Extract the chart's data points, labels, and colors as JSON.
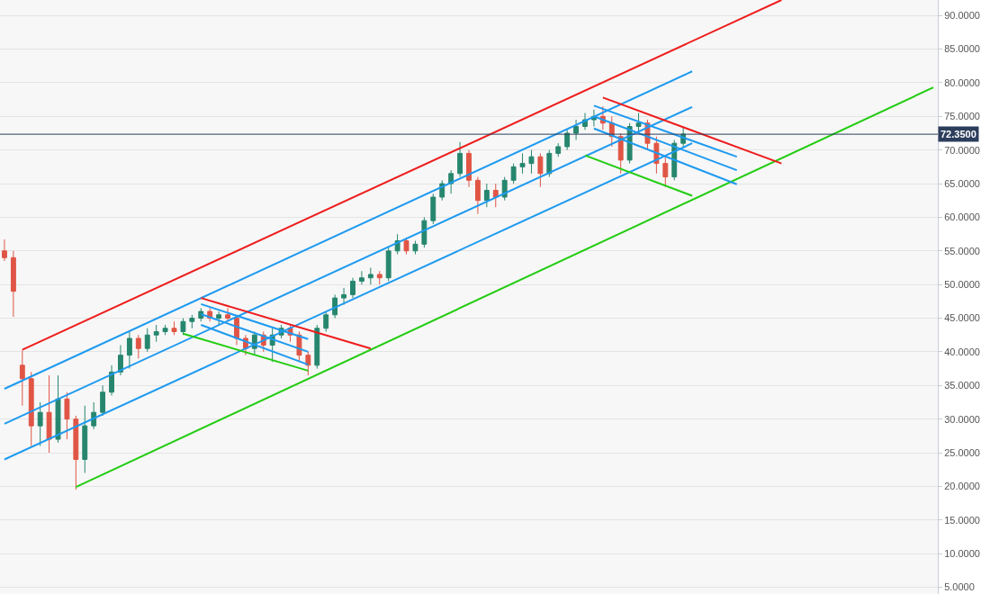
{
  "chart_data": {
    "type": "candlestick",
    "categories": [
      null,
      null,
      null,
      null,
      null,
      null,
      null,
      null,
      null,
      null,
      null,
      null,
      null,
      null,
      null,
      null,
      null,
      null,
      null,
      null,
      null,
      null,
      null,
      null,
      null,
      null,
      null,
      null,
      null,
      null,
      null,
      null,
      null,
      null,
      null,
      null,
      null,
      null,
      null,
      null,
      null,
      null,
      null,
      null,
      null,
      null,
      null,
      null,
      null,
      null,
      null,
      null,
      null,
      null,
      null,
      null,
      null,
      null,
      null,
      null,
      null,
      null,
      null,
      null,
      null,
      null,
      null,
      null,
      null,
      null,
      null,
      null,
      null,
      null,
      null,
      null,
      null,
      null,
      null,
      null,
      null,
      null,
      null,
      null,
      null,
      null,
      null,
      null,
      null,
      null,
      null,
      null,
      null,
      null,
      null,
      null,
      null,
      null,
      null,
      null,
      null,
      null,
      null,
      null,
      null
    ],
    "ohlc": [
      [
        55.0,
        56.7,
        53.5,
        54.0
      ],
      [
        54.0,
        55.0,
        45.2,
        49.0
      ],
      [
        38.0,
        40.2,
        32.0,
        36.0
      ],
      [
        36.0,
        37.0,
        26.0,
        29.0
      ],
      [
        29.0,
        32.5,
        26.0,
        31.0
      ],
      [
        31.0,
        36.5,
        25.0,
        27.0
      ],
      [
        27.0,
        36.5,
        26.5,
        33.0
      ],
      [
        33.0,
        34.0,
        27.0,
        30.0
      ],
      [
        30.0,
        30.5,
        19.5,
        24.0
      ],
      [
        24.0,
        32.0,
        22.0,
        29.0
      ],
      [
        29.0,
        32.5,
        28.5,
        31.0
      ],
      [
        31.0,
        35.0,
        30.5,
        34.0
      ],
      [
        34.0,
        38.0,
        33.5,
        37.0
      ],
      [
        37.0,
        41.0,
        36.5,
        39.5
      ],
      [
        39.5,
        43.0,
        37.5,
        42.0
      ],
      [
        42.0,
        42.5,
        39.0,
        40.5
      ],
      [
        40.5,
        43.5,
        40.0,
        42.5
      ],
      [
        42.5,
        44.0,
        41.5,
        43.0
      ],
      [
        43.0,
        44.0,
        42.5,
        43.5
      ],
      [
        43.5,
        44.5,
        42.5,
        43.0
      ],
      [
        43.0,
        45.0,
        42.5,
        44.5
      ],
      [
        44.5,
        45.5,
        43.5,
        45.0
      ],
      [
        45.0,
        46.5,
        44.5,
        46.0
      ],
      [
        46.0,
        46.5,
        44.5,
        45.0
      ],
      [
        45.0,
        46.0,
        44.0,
        45.5
      ],
      [
        45.5,
        46.5,
        44.5,
        45.0
      ],
      [
        45.0,
        45.5,
        41.0,
        42.0
      ],
      [
        42.0,
        42.5,
        39.5,
        40.5
      ],
      [
        40.5,
        43.0,
        39.5,
        42.5
      ],
      [
        42.5,
        43.0,
        40.0,
        41.0
      ],
      [
        41.0,
        43.5,
        38.5,
        42.5
      ],
      [
        42.5,
        44.0,
        42.0,
        43.5
      ],
      [
        43.5,
        44.0,
        41.5,
        42.5
      ],
      [
        42.5,
        43.0,
        38.5,
        39.5
      ],
      [
        39.5,
        40.0,
        36.5,
        38.0
      ],
      [
        38.0,
        44.0,
        37.5,
        43.5
      ],
      [
        43.5,
        46.0,
        43.0,
        45.5
      ],
      [
        45.5,
        48.5,
        45.0,
        48.0
      ],
      [
        48.0,
        49.5,
        47.0,
        48.5
      ],
      [
        48.5,
        51.0,
        48.0,
        50.5
      ],
      [
        50.5,
        52.0,
        50.0,
        51.0
      ],
      [
        51.0,
        52.5,
        50.0,
        51.5
      ],
      [
        51.5,
        52.0,
        50.0,
        51.0
      ],
      [
        51.0,
        55.5,
        50.5,
        55.0
      ],
      [
        55.0,
        57.5,
        54.5,
        56.5
      ],
      [
        56.5,
        57.0,
        54.5,
        55.0
      ],
      [
        55.0,
        56.5,
        54.5,
        56.0
      ],
      [
        56.0,
        60.0,
        55.5,
        59.5
      ],
      [
        59.5,
        63.5,
        59.0,
        63.0
      ],
      [
        63.0,
        65.5,
        62.5,
        65.0
      ],
      [
        65.0,
        67.0,
        63.5,
        66.5
      ],
      [
        66.5,
        71.2,
        66.0,
        69.5
      ],
      [
        69.5,
        70.0,
        64.5,
        65.5
      ],
      [
        65.5,
        66.0,
        60.5,
        62.5
      ],
      [
        62.5,
        65.0,
        61.5,
        64.0
      ],
      [
        64.0,
        65.0,
        61.5,
        63.0
      ],
      [
        63.0,
        66.0,
        62.5,
        65.5
      ],
      [
        65.5,
        68.0,
        65.0,
        67.5
      ],
      [
        67.5,
        69.5,
        66.5,
        68.0
      ],
      [
        68.0,
        70.0,
        66.5,
        69.0
      ],
      [
        69.0,
        69.5,
        64.5,
        66.5
      ],
      [
        66.5,
        70.0,
        66.0,
        69.5
      ],
      [
        69.5,
        71.0,
        69.0,
        70.5
      ],
      [
        70.5,
        73.0,
        70.0,
        72.5
      ],
      [
        72.5,
        74.5,
        71.5,
        73.5
      ],
      [
        73.5,
        75.5,
        73.0,
        74.5
      ],
      [
        74.5,
        76.0,
        73.5,
        75.0
      ],
      [
        75.0,
        76.5,
        73.0,
        74.0
      ],
      [
        74.0,
        75.0,
        70.5,
        72.0
      ],
      [
        72.0,
        72.5,
        66.5,
        68.5
      ],
      [
        68.5,
        74.0,
        68.0,
        73.5
      ],
      [
        73.5,
        75.5,
        72.5,
        74.0
      ],
      [
        74.0,
        74.5,
        70.0,
        71.0
      ],
      [
        71.0,
        72.0,
        66.5,
        68.0
      ],
      [
        68.0,
        69.0,
        64.5,
        66.0
      ],
      [
        66.0,
        71.5,
        65.5,
        71.0
      ],
      [
        71.0,
        73.5,
        70.5,
        72.35
      ],
      null,
      null,
      null,
      null,
      null,
      null,
      null,
      null,
      null,
      null,
      null,
      null,
      null,
      null,
      null,
      null,
      null,
      null,
      null,
      null,
      null,
      null,
      null,
      null,
      null,
      null,
      null,
      null
    ],
    "series": [
      {
        "type": "line",
        "color": "#ee1c1c",
        "values": [
          null,
          null,
          40.3,
          null,
          null,
          null,
          null,
          null,
          null,
          null,
          null,
          null,
          null,
          null,
          null,
          null,
          null,
          null,
          null,
          null,
          null,
          null,
          null,
          null,
          null,
          null,
          null,
          null,
          null,
          null,
          null,
          null,
          null,
          null,
          null,
          null,
          null,
          null,
          null,
          null,
          null,
          null,
          null,
          null,
          null,
          null,
          null,
          null,
          null,
          null,
          null,
          null,
          null,
          null,
          null,
          null,
          null,
          null,
          null,
          null,
          null,
          null,
          null,
          null,
          null,
          null,
          null,
          null,
          null,
          null,
          null,
          null,
          null,
          null,
          null,
          null,
          null,
          null,
          null,
          null,
          null,
          null,
          null,
          null,
          null,
          null,
          null,
          92.3,
          null,
          null,
          null,
          null,
          null,
          null,
          null,
          null,
          null,
          null,
          null,
          null,
          null,
          null,
          null,
          null,
          null
        ]
      },
      {
        "type": "line",
        "color": "#1e9af0",
        "values": [
          34.5,
          null,
          null,
          null,
          null,
          null,
          null,
          null,
          null,
          null,
          null,
          null,
          null,
          null,
          null,
          null,
          null,
          null,
          null,
          null,
          null,
          null,
          null,
          null,
          null,
          null,
          null,
          null,
          null,
          null,
          null,
          null,
          null,
          null,
          null,
          null,
          null,
          null,
          null,
          null,
          null,
          null,
          null,
          null,
          null,
          null,
          null,
          null,
          null,
          null,
          null,
          null,
          null,
          null,
          null,
          null,
          null,
          null,
          null,
          null,
          null,
          null,
          null,
          null,
          null,
          null,
          null,
          null,
          null,
          null,
          null,
          null,
          null,
          null,
          null,
          null,
          null,
          81.7,
          null,
          null,
          null,
          null,
          null,
          null,
          null,
          null,
          null,
          null,
          null,
          null,
          null,
          null,
          null,
          null,
          null,
          null,
          null,
          null,
          null,
          null,
          null,
          null,
          null,
          null,
          null
        ]
      },
      {
        "type": "line",
        "color": "#1e9af0",
        "values": [
          29.3,
          null,
          null,
          null,
          null,
          null,
          null,
          null,
          null,
          null,
          null,
          null,
          null,
          null,
          null,
          null,
          null,
          null,
          null,
          null,
          null,
          null,
          null,
          null,
          null,
          null,
          null,
          null,
          null,
          null,
          null,
          null,
          null,
          null,
          null,
          null,
          null,
          null,
          null,
          null,
          null,
          null,
          null,
          null,
          null,
          null,
          null,
          null,
          null,
          null,
          null,
          null,
          null,
          null,
          null,
          null,
          null,
          null,
          null,
          null,
          null,
          null,
          null,
          null,
          null,
          null,
          null,
          null,
          null,
          null,
          null,
          null,
          null,
          null,
          null,
          null,
          null,
          76.4,
          null,
          null,
          null,
          null,
          null,
          null,
          null,
          null,
          null,
          null,
          null,
          null,
          null,
          null,
          null,
          null,
          null,
          null,
          null,
          null,
          null,
          null,
          null,
          null,
          null,
          null,
          null
        ]
      },
      {
        "type": "line",
        "color": "#1e9af0",
        "values": [
          24.0,
          null,
          null,
          null,
          null,
          null,
          null,
          null,
          null,
          null,
          null,
          null,
          null,
          null,
          null,
          null,
          null,
          null,
          null,
          null,
          null,
          null,
          null,
          null,
          null,
          null,
          null,
          null,
          null,
          null,
          null,
          null,
          null,
          null,
          null,
          null,
          null,
          null,
          null,
          null,
          null,
          null,
          null,
          null,
          null,
          null,
          null,
          null,
          null,
          null,
          null,
          null,
          null,
          null,
          null,
          null,
          null,
          null,
          null,
          null,
          null,
          null,
          null,
          null,
          null,
          null,
          null,
          null,
          null,
          null,
          null,
          null,
          null,
          null,
          null,
          null,
          null,
          71.0,
          null,
          null,
          null,
          null,
          null,
          null,
          null,
          null,
          null,
          null,
          null,
          null,
          null,
          null,
          null,
          null,
          null,
          null,
          null,
          null,
          null,
          null,
          null,
          null,
          null,
          null,
          null
        ]
      },
      {
        "type": "line",
        "color": "#22cc11",
        "values": [
          null,
          null,
          null,
          null,
          null,
          null,
          null,
          null,
          19.9,
          null,
          null,
          null,
          null,
          null,
          null,
          null,
          null,
          null,
          null,
          null,
          null,
          null,
          null,
          null,
          null,
          null,
          null,
          null,
          null,
          null,
          null,
          null,
          null,
          null,
          null,
          null,
          null,
          null,
          null,
          null,
          null,
          null,
          null,
          null,
          null,
          null,
          null,
          null,
          null,
          null,
          null,
          null,
          null,
          null,
          null,
          null,
          null,
          null,
          null,
          null,
          null,
          null,
          null,
          null,
          null,
          null,
          null,
          null,
          null,
          null,
          null,
          null,
          null,
          null,
          null,
          null,
          null,
          null,
          null,
          null,
          null,
          null,
          null,
          null,
          null,
          null,
          null,
          null,
          null,
          null,
          null,
          null,
          null,
          null,
          null,
          null,
          null,
          null,
          null,
          null,
          null,
          null,
          null,
          null,
          79.3
        ]
      },
      {
        "type": "line",
        "color": "#ee1c1c",
        "values": [
          null,
          null,
          null,
          null,
          null,
          null,
          null,
          null,
          null,
          null,
          null,
          null,
          null,
          null,
          null,
          null,
          null,
          null,
          null,
          null,
          null,
          null,
          48.0,
          null,
          null,
          null,
          null,
          null,
          null,
          null,
          null,
          null,
          null,
          null,
          null,
          null,
          null,
          null,
          null,
          null,
          null,
          40.5,
          null,
          null,
          null,
          null,
          null,
          null,
          null,
          null,
          null,
          null,
          null,
          null,
          null,
          null,
          null,
          null,
          null,
          null,
          null,
          null,
          null,
          null,
          null,
          null,
          null,
          null,
          null,
          null,
          null,
          null,
          null,
          null,
          null,
          null,
          null,
          null,
          null,
          null,
          null,
          null,
          null,
          null,
          null,
          null,
          null,
          null,
          null,
          null,
          null,
          null,
          null,
          null,
          null,
          null,
          null,
          null,
          null,
          null,
          null,
          null,
          null,
          null,
          null
        ]
      },
      {
        "type": "line",
        "color": "#22cc11",
        "values": [
          null,
          null,
          null,
          null,
          null,
          null,
          null,
          null,
          null,
          null,
          null,
          null,
          null,
          null,
          null,
          null,
          null,
          null,
          null,
          null,
          42.7,
          null,
          null,
          null,
          null,
          null,
          null,
          null,
          null,
          null,
          null,
          null,
          null,
          null,
          37.2,
          null,
          null,
          null,
          null,
          null,
          null,
          null,
          null,
          null,
          null,
          null,
          null,
          null,
          null,
          null,
          null,
          null,
          null,
          null,
          null,
          null,
          null,
          null,
          null,
          null,
          null,
          null,
          null,
          null,
          null,
          null,
          null,
          null,
          null,
          null,
          null,
          null,
          null,
          null,
          null,
          null,
          null,
          null,
          null,
          null,
          null,
          null,
          null,
          null,
          null,
          null,
          null,
          null,
          null,
          null,
          null,
          null,
          null,
          null,
          null,
          null,
          null,
          null,
          null,
          null,
          null,
          null,
          null,
          null,
          null
        ]
      },
      {
        "type": "line",
        "color": "#1e9af0",
        "values": [
          null,
          null,
          null,
          null,
          null,
          null,
          null,
          null,
          null,
          null,
          null,
          null,
          null,
          null,
          null,
          null,
          null,
          null,
          null,
          null,
          null,
          null,
          47.1,
          null,
          null,
          null,
          null,
          null,
          null,
          null,
          null,
          null,
          null,
          null,
          41.9,
          null,
          null,
          null,
          null,
          null,
          null,
          null,
          null,
          null,
          null,
          null,
          null,
          null,
          null,
          null,
          null,
          null,
          null,
          null,
          null,
          null,
          null,
          null,
          null,
          null,
          null,
          null,
          null,
          null,
          null,
          null,
          null,
          null,
          null,
          null,
          null,
          null,
          null,
          null,
          null,
          null,
          null,
          null,
          null,
          null,
          null,
          null,
          null,
          null,
          null,
          null,
          null,
          null,
          null,
          null,
          null,
          null,
          null,
          null,
          null,
          null,
          null,
          null,
          null,
          null,
          null,
          null,
          null,
          null,
          null
        ]
      },
      {
        "type": "line",
        "color": "#1e9af0",
        "values": [
          null,
          null,
          null,
          null,
          null,
          null,
          null,
          null,
          null,
          null,
          null,
          null,
          null,
          null,
          null,
          null,
          null,
          null,
          null,
          null,
          null,
          null,
          45.6,
          null,
          null,
          null,
          null,
          null,
          null,
          null,
          null,
          null,
          null,
          null,
          40.0,
          null,
          null,
          null,
          null,
          null,
          null,
          null,
          null,
          null,
          null,
          null,
          null,
          null,
          null,
          null,
          null,
          null,
          null,
          null,
          null,
          null,
          null,
          null,
          null,
          null,
          null,
          null,
          null,
          null,
          null,
          null,
          null,
          null,
          null,
          null,
          null,
          null,
          null,
          null,
          null,
          null,
          null,
          null,
          null,
          null,
          null,
          null,
          null,
          null,
          null,
          null,
          null,
          null,
          null,
          null,
          null,
          null,
          null,
          null,
          null,
          null,
          null,
          null,
          null,
          null,
          null,
          null,
          null,
          null,
          null
        ]
      },
      {
        "type": "line",
        "color": "#1e9af0",
        "values": [
          null,
          null,
          null,
          null,
          null,
          null,
          null,
          null,
          null,
          null,
          null,
          null,
          null,
          null,
          null,
          null,
          null,
          null,
          null,
          null,
          null,
          null,
          44.0,
          null,
          null,
          null,
          null,
          null,
          null,
          null,
          null,
          null,
          null,
          null,
          38.1,
          null,
          null,
          null,
          null,
          null,
          null,
          null,
          null,
          null,
          null,
          null,
          null,
          null,
          null,
          null,
          null,
          null,
          null,
          null,
          null,
          null,
          null,
          null,
          null,
          null,
          null,
          null,
          null,
          null,
          null,
          null,
          null,
          null,
          null,
          null,
          null,
          null,
          null,
          null,
          null,
          null,
          null,
          null,
          null,
          null,
          null,
          null,
          null,
          null,
          null,
          null,
          null,
          null,
          null,
          null,
          null,
          null,
          null,
          null,
          null,
          null,
          null,
          null,
          null,
          null,
          null,
          null,
          null,
          null,
          null
        ]
      },
      {
        "type": "line",
        "color": "#ee1c1c",
        "values": [
          null,
          null,
          null,
          null,
          null,
          null,
          null,
          null,
          null,
          null,
          null,
          null,
          null,
          null,
          null,
          null,
          null,
          null,
          null,
          null,
          null,
          null,
          null,
          null,
          null,
          null,
          null,
          null,
          null,
          null,
          null,
          null,
          null,
          null,
          null,
          null,
          null,
          null,
          null,
          null,
          null,
          null,
          null,
          null,
          null,
          null,
          null,
          null,
          null,
          null,
          null,
          null,
          null,
          null,
          null,
          null,
          null,
          null,
          null,
          null,
          null,
          null,
          null,
          null,
          null,
          null,
          null,
          77.8,
          null,
          null,
          null,
          null,
          null,
          null,
          null,
          null,
          null,
          null,
          null,
          null,
          null,
          null,
          null,
          null,
          null,
          null,
          null,
          68.0,
          null,
          null,
          null,
          null,
          null,
          null,
          null,
          null,
          null,
          null,
          null,
          null,
          null,
          null,
          null,
          null,
          null
        ]
      },
      {
        "type": "line",
        "color": "#22cc11",
        "values": [
          null,
          null,
          null,
          null,
          null,
          null,
          null,
          null,
          null,
          null,
          null,
          null,
          null,
          null,
          null,
          null,
          null,
          null,
          null,
          null,
          null,
          null,
          null,
          null,
          null,
          null,
          null,
          null,
          null,
          null,
          null,
          null,
          null,
          null,
          null,
          null,
          null,
          null,
          null,
          null,
          null,
          null,
          null,
          null,
          null,
          null,
          null,
          null,
          null,
          null,
          null,
          null,
          null,
          null,
          null,
          null,
          null,
          null,
          null,
          null,
          null,
          null,
          null,
          null,
          null,
          69.2,
          null,
          null,
          null,
          null,
          null,
          null,
          null,
          null,
          null,
          null,
          null,
          63.2,
          null,
          null,
          null,
          null,
          null,
          null,
          null,
          null,
          null,
          null,
          null,
          null,
          null,
          null,
          null,
          null,
          null,
          null,
          null,
          null,
          null,
          null,
          null,
          null,
          null,
          null,
          null
        ]
      },
      {
        "type": "line",
        "color": "#1e9af0",
        "values": [
          null,
          null,
          null,
          null,
          null,
          null,
          null,
          null,
          null,
          null,
          null,
          null,
          null,
          null,
          null,
          null,
          null,
          null,
          null,
          null,
          null,
          null,
          null,
          null,
          null,
          null,
          null,
          null,
          null,
          null,
          null,
          null,
          null,
          null,
          null,
          null,
          null,
          null,
          null,
          null,
          null,
          null,
          null,
          null,
          null,
          null,
          null,
          null,
          null,
          null,
          null,
          null,
          null,
          null,
          null,
          null,
          null,
          null,
          null,
          null,
          null,
          null,
          null,
          null,
          null,
          null,
          76.6,
          null,
          null,
          null,
          null,
          null,
          null,
          null,
          null,
          null,
          null,
          null,
          null,
          null,
          null,
          null,
          69.0,
          null,
          null,
          null,
          null,
          null,
          null,
          null,
          null,
          null,
          null,
          null,
          null,
          null,
          null,
          null,
          null,
          null,
          null,
          null,
          null,
          null,
          null
        ]
      },
      {
        "type": "line",
        "color": "#1e9af0",
        "values": [
          null,
          null,
          null,
          null,
          null,
          null,
          null,
          null,
          null,
          null,
          null,
          null,
          null,
          null,
          null,
          null,
          null,
          null,
          null,
          null,
          null,
          null,
          null,
          null,
          null,
          null,
          null,
          null,
          null,
          null,
          null,
          null,
          null,
          null,
          null,
          null,
          null,
          null,
          null,
          null,
          null,
          null,
          null,
          null,
          null,
          null,
          null,
          null,
          null,
          null,
          null,
          null,
          null,
          null,
          null,
          null,
          null,
          null,
          null,
          null,
          null,
          null,
          null,
          null,
          null,
          null,
          75.0,
          null,
          null,
          null,
          null,
          null,
          null,
          null,
          null,
          null,
          null,
          null,
          null,
          null,
          null,
          null,
          67.0,
          null,
          null,
          null,
          null,
          null,
          null,
          null,
          null,
          null,
          null,
          null,
          null,
          null,
          null,
          null,
          null,
          null,
          null,
          null,
          null,
          null,
          null
        ]
      },
      {
        "type": "line",
        "color": "#1e9af0",
        "values": [
          null,
          null,
          null,
          null,
          null,
          null,
          null,
          null,
          null,
          null,
          null,
          null,
          null,
          null,
          null,
          null,
          null,
          null,
          null,
          null,
          null,
          null,
          null,
          null,
          null,
          null,
          null,
          null,
          null,
          null,
          null,
          null,
          null,
          null,
          null,
          null,
          null,
          null,
          null,
          null,
          null,
          null,
          null,
          null,
          null,
          null,
          null,
          null,
          null,
          null,
          null,
          null,
          null,
          null,
          null,
          null,
          null,
          null,
          null,
          null,
          null,
          null,
          null,
          null,
          null,
          null,
          73.2,
          null,
          null,
          null,
          null,
          null,
          null,
          null,
          null,
          null,
          null,
          null,
          null,
          null,
          null,
          null,
          64.9,
          null,
          null,
          null,
          null,
          null,
          null,
          null,
          null,
          null,
          null,
          null,
          null,
          null,
          null,
          null,
          null,
          null,
          null,
          null,
          null,
          null,
          null
        ]
      }
    ],
    "ref_lines": [
      {
        "axis": "y",
        "value": 72.35,
        "label": "72.3500",
        "color": "#2c3e5c"
      }
    ],
    "ylim": [
      4.0,
      92.3
    ],
    "yticks": [
      {
        "value": 5,
        "label": "5.0000"
      },
      {
        "value": 10,
        "label": "10.0000"
      },
      {
        "value": 15,
        "label": "15.0000"
      },
      {
        "value": 20,
        "label": "20.0000"
      },
      {
        "value": 25,
        "label": "25.0000"
      },
      {
        "value": 30,
        "label": "30.0000"
      },
      {
        "value": 35,
        "label": "35.0000"
      },
      {
        "value": 40,
        "label": "40.0000"
      },
      {
        "value": 45,
        "label": "45.0000"
      },
      {
        "value": 50,
        "label": "50.0000"
      },
      {
        "value": 55,
        "label": "55.0000"
      },
      {
        "value": 60,
        "label": "60.0000"
      },
      {
        "value": 65,
        "label": "65.0000"
      },
      {
        "value": 70,
        "label": "70.0000"
      },
      {
        "value": 75,
        "label": "75.0000"
      },
      {
        "value": 80,
        "label": "80.0000"
      },
      {
        "value": 85,
        "label": "85.0000"
      },
      {
        "value": 90,
        "label": "90.0000"
      }
    ],
    "grid": "y",
    "tick_labels": "y"
  }
}
